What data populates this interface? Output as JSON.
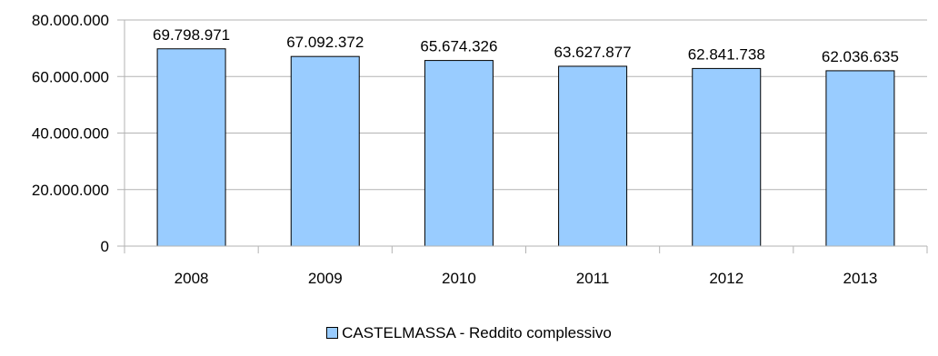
{
  "chart_data": {
    "type": "bar",
    "categories": [
      "2008",
      "2009",
      "2010",
      "2011",
      "2012",
      "2013"
    ],
    "series": [
      {
        "name": "CASTELMASSA - Reddito complessivo",
        "values": [
          69798971,
          67092372,
          65674326,
          63627877,
          62841738,
          62036635
        ],
        "labels": [
          "69.798.971",
          "67.092.372",
          "65.674.326",
          "63.627.877",
          "62.841.738",
          "62.036.635"
        ]
      }
    ],
    "yticks": [
      "0",
      "20.000.000",
      "40.000.000",
      "60.000.000",
      "80.000.000"
    ],
    "ylim": [
      0,
      80000000
    ],
    "grid": true,
    "legend_position": "bottom",
    "colors": {
      "bar_fill": "#99ccff",
      "bar_stroke": "#000000",
      "grid": "#b3b3b3"
    }
  }
}
